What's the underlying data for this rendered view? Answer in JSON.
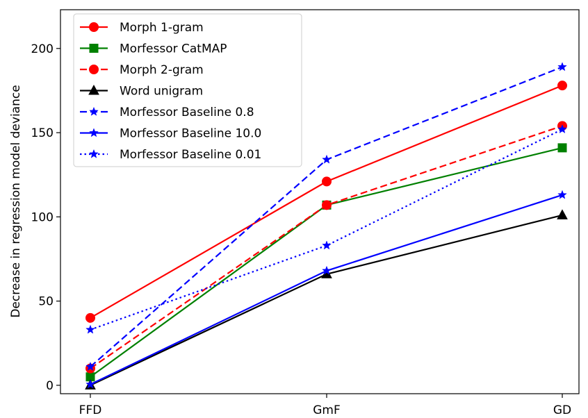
{
  "chart_data": {
    "type": "line",
    "categories": [
      "FFD",
      "GmF",
      "GD"
    ],
    "ylabel": "Decrease in regression model deviance",
    "xlabel": "",
    "ylim": [
      -5,
      223
    ],
    "yticks": [
      0,
      50,
      100,
      150,
      200
    ],
    "grid": false,
    "legend_position": "top-left",
    "series": [
      {
        "name": "Morph 1-gram",
        "values": [
          40,
          121,
          178
        ],
        "color": "#ff0000",
        "dash": "solid",
        "marker": "circle"
      },
      {
        "name": "Morfessor CatMAP",
        "values": [
          5,
          107,
          141
        ],
        "color": "#008000",
        "dash": "solid",
        "marker": "square"
      },
      {
        "name": "Morph 2-gram",
        "values": [
          10,
          107,
          154
        ],
        "color": "#ff0000",
        "dash": "dashed",
        "marker": "circle"
      },
      {
        "name": "Word unigram",
        "values": [
          0,
          66,
          101
        ],
        "color": "#000000",
        "dash": "solid",
        "marker": "triangle"
      },
      {
        "name": "Morfessor Baseline 0.8",
        "values": [
          11,
          134,
          189
        ],
        "color": "#0000ff",
        "dash": "dashed",
        "marker": "star"
      },
      {
        "name": "Morfessor Baseline 10.0",
        "values": [
          0.5,
          68,
          113
        ],
        "color": "#0000ff",
        "dash": "solid",
        "marker": "star"
      },
      {
        "name": "Morfessor Baseline 0.01",
        "values": [
          33,
          83,
          152
        ],
        "color": "#0000ff",
        "dash": "dotted",
        "marker": "star"
      }
    ]
  }
}
